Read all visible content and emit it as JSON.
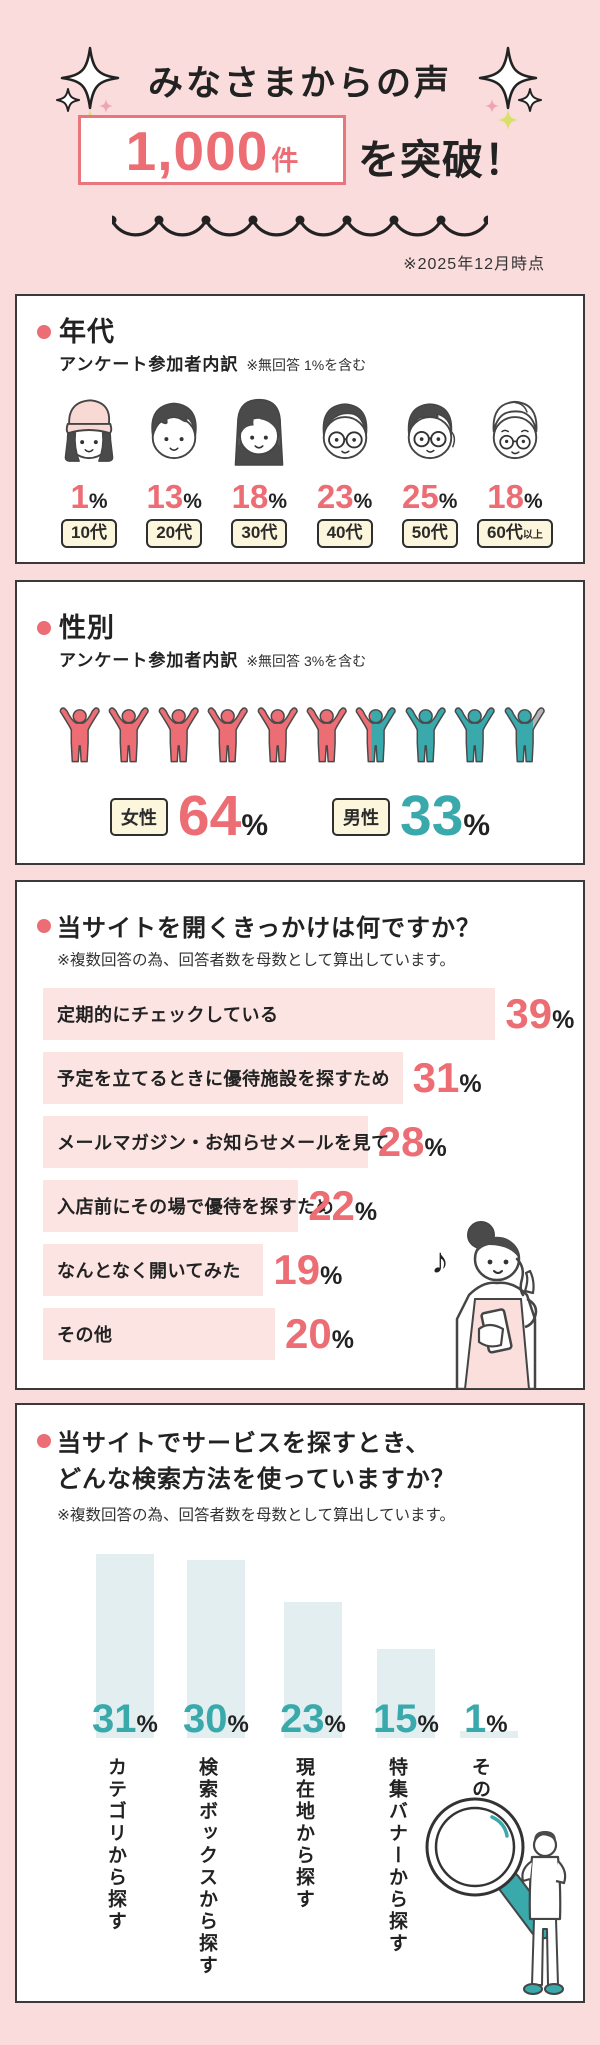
{
  "percent": "%",
  "colors": {
    "pink": "#ec6d74",
    "teal": "#3aa9ac",
    "gray": "#b3b5b7",
    "cream": "#fcf6dc",
    "bar_pink": "#fbe4e2",
    "bar_blue": "#e3eef0",
    "bg": "#fadcdc"
  },
  "header": {
    "title": "みなさまからの声",
    "count": "1,000",
    "count_unit": "件",
    "suffix": "を突破！",
    "date_note": "※2025年12月時点"
  },
  "age_section": {
    "title": "年代",
    "subtitle": "アンケート参加者内訳",
    "note": "※無回答 1%を含む",
    "groups": [
      {
        "label": "10代",
        "suffix": "",
        "value": 1
      },
      {
        "label": "20代",
        "suffix": "",
        "value": 13
      },
      {
        "label": "30代",
        "suffix": "",
        "value": 18
      },
      {
        "label": "40代",
        "suffix": "",
        "value": 23
      },
      {
        "label": "50代",
        "suffix": "",
        "value": 25
      },
      {
        "label": "60代",
        "suffix": "以上",
        "value": 18
      }
    ]
  },
  "gender_section": {
    "title": "性別",
    "subtitle": "アンケート参加者内訳",
    "note": "※無回答 3%を含む",
    "female_label": "女性",
    "female_value": 64,
    "male_label": "男性",
    "male_value": 33
  },
  "trigger_section": {
    "title": "当サイトを開くきっかけは何ですか？",
    "note": "※複数回答の為、回答者数を母数として算出しています。",
    "bars": [
      {
        "label": "定期的にチェックしている",
        "value": 39
      },
      {
        "label": "予定を立てるときに優待施設を探すため",
        "value": 31
      },
      {
        "label": "メールマガジン・お知らせメールを見て",
        "value": 28
      },
      {
        "label": "入店前にその場で優待を探すため",
        "value": 22
      },
      {
        "label": "なんとなく開いてみた",
        "value": 19
      },
      {
        "label": "その他",
        "value": 20
      }
    ]
  },
  "search_section": {
    "title_line1": "当サイトでサービスを探すとき、",
    "title_line2": "どんな検索方法を使っていますか？",
    "note": "※複数回答の為、回答者数を母数として算出しています。",
    "bars": [
      {
        "label": "カテゴリから探す",
        "value": 31
      },
      {
        "label": "検索ボックスから探す",
        "value": 30
      },
      {
        "label": "現在地から探す",
        "value": 23
      },
      {
        "label": "特集バナーから探す",
        "value": 15
      },
      {
        "label": "その他",
        "value": 1
      }
    ]
  },
  "chart_data": [
    {
      "type": "bar",
      "title": "年代 アンケート参加者内訳（※無回答1%を含む）",
      "categories": [
        "10代",
        "20代",
        "30代",
        "40代",
        "50代",
        "60代以上"
      ],
      "values": [
        1,
        13,
        18,
        23,
        25,
        18
      ],
      "unit": "%"
    },
    {
      "type": "bar",
      "title": "性別 アンケート参加者内訳（※無回答3%を含む）",
      "categories": [
        "女性",
        "男性",
        "無回答"
      ],
      "values": [
        64,
        33,
        3
      ],
      "unit": "%"
    },
    {
      "type": "bar",
      "orientation": "horizontal",
      "title": "当サイトを開くきっかけは何ですか？（複数回答）",
      "categories": [
        "定期的にチェックしている",
        "予定を立てるときに優待施設を探すため",
        "メールマガジン・お知らせメールを見て",
        "入店前にその場で優待を探すため",
        "なんとなく開いてみた",
        "その他"
      ],
      "values": [
        39,
        31,
        28,
        22,
        19,
        20
      ],
      "unit": "%"
    },
    {
      "type": "bar",
      "orientation": "vertical",
      "title": "当サイトでサービスを探すとき、どんな検索方法を使っていますか？（複数回答）",
      "categories": [
        "カテゴリから探す",
        "検索ボックスから探す",
        "現在地から探す",
        "特集バナーから探す",
        "その他"
      ],
      "values": [
        31,
        30,
        23,
        15,
        1
      ],
      "unit": "%"
    }
  ]
}
